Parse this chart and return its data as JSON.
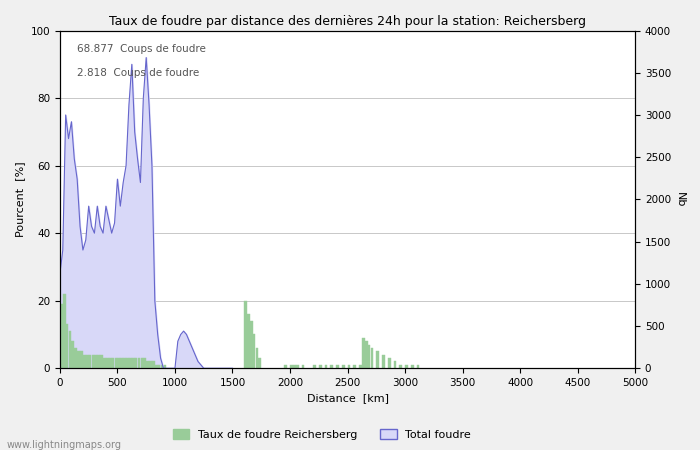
{
  "title": "Taux de foudre par distance des dernières 24h pour la station: Reichersberg",
  "xlabel": "Distance  [km]",
  "ylabel_left": "Pourcent  [%]",
  "ylabel_right": "Nb",
  "annotation_line1": "68.877  Coups de foudre",
  "annotation_line2": "2.818  Coups de foudre",
  "xlim": [
    0,
    5000
  ],
  "ylim_left": [
    0,
    100
  ],
  "ylim_right": [
    0,
    4000
  ],
  "xticks": [
    0,
    500,
    1000,
    1500,
    2000,
    2500,
    3000,
    3500,
    4000,
    4500,
    5000
  ],
  "yticks_left": [
    0,
    20,
    40,
    60,
    80,
    100
  ],
  "yticks_right": [
    0,
    500,
    1000,
    1500,
    2000,
    2500,
    3000,
    3500,
    4000
  ],
  "legend_green": "Taux de foudre Reichersberg",
  "legend_blue": "Total foudre",
  "watermark": "www.lightningmaps.org",
  "bg_color": "#f0f0f0",
  "plot_bg_color": "#ffffff",
  "green_bar_color": "#99cc99",
  "green_bar_edge": "#99cc99",
  "blue_fill_color": "#d8d8f8",
  "blue_line_color": "#6666cc",
  "grid_color": "#c8c8c8",
  "figsize": [
    7.0,
    4.5
  ],
  "dpi": 100,
  "blue_x": [
    0,
    25,
    50,
    75,
    100,
    125,
    150,
    175,
    200,
    225,
    250,
    275,
    300,
    325,
    350,
    375,
    400,
    425,
    450,
    475,
    500,
    525,
    550,
    575,
    600,
    625,
    650,
    675,
    700,
    725,
    750,
    775,
    800,
    825,
    850,
    875,
    900,
    925,
    950,
    975,
    1000,
    1025,
    1050,
    1075,
    1100,
    1125,
    1150,
    1175,
    1200,
    1225,
    1250,
    1275,
    1300,
    1325,
    1350,
    1375,
    1400,
    1425,
    1450,
    1475,
    1500
  ],
  "blue_y": [
    28,
    35,
    75,
    68,
    73,
    62,
    56,
    42,
    35,
    38,
    48,
    42,
    40,
    48,
    42,
    40,
    48,
    44,
    40,
    43,
    56,
    48,
    55,
    60,
    78,
    90,
    70,
    62,
    55,
    80,
    92,
    78,
    60,
    20,
    10,
    3,
    0,
    0,
    0,
    0,
    0,
    8,
    10,
    11,
    10,
    8,
    6,
    4,
    2,
    1,
    0,
    0,
    0,
    0,
    0,
    0,
    0,
    0,
    0,
    0,
    0
  ],
  "green_x": [
    0,
    25,
    50,
    75,
    100,
    125,
    150,
    175,
    200,
    225,
    250,
    275,
    300,
    325,
    350,
    375,
    400,
    425,
    450,
    475,
    500,
    525,
    550,
    575,
    600,
    625,
    650,
    675,
    700,
    725,
    750,
    775,
    800,
    825,
    850,
    875,
    900,
    1600,
    1625,
    1650,
    1675,
    1700,
    1725,
    1950,
    2000,
    2025,
    2050,
    2100,
    2200,
    2250,
    2300,
    2350,
    2400,
    2450,
    2500,
    2550,
    2600,
    2625,
    2650,
    2675,
    2700,
    2750,
    2800,
    2850,
    2900,
    2950,
    3000,
    3050,
    3100
  ],
  "green_y": [
    19,
    22,
    13,
    11,
    8,
    6,
    5,
    5,
    4,
    4,
    4,
    4,
    4,
    4,
    4,
    3,
    3,
    3,
    3,
    3,
    3,
    3,
    3,
    3,
    3,
    3,
    3,
    3,
    3,
    3,
    2,
    2,
    2,
    1,
    1,
    1,
    1,
    20,
    16,
    14,
    10,
    6,
    3,
    1,
    1,
    1,
    1,
    1,
    1,
    1,
    1,
    1,
    1,
    1,
    1,
    1,
    1,
    9,
    8,
    7,
    6,
    5,
    4,
    3,
    2,
    1,
    1,
    1,
    1
  ]
}
